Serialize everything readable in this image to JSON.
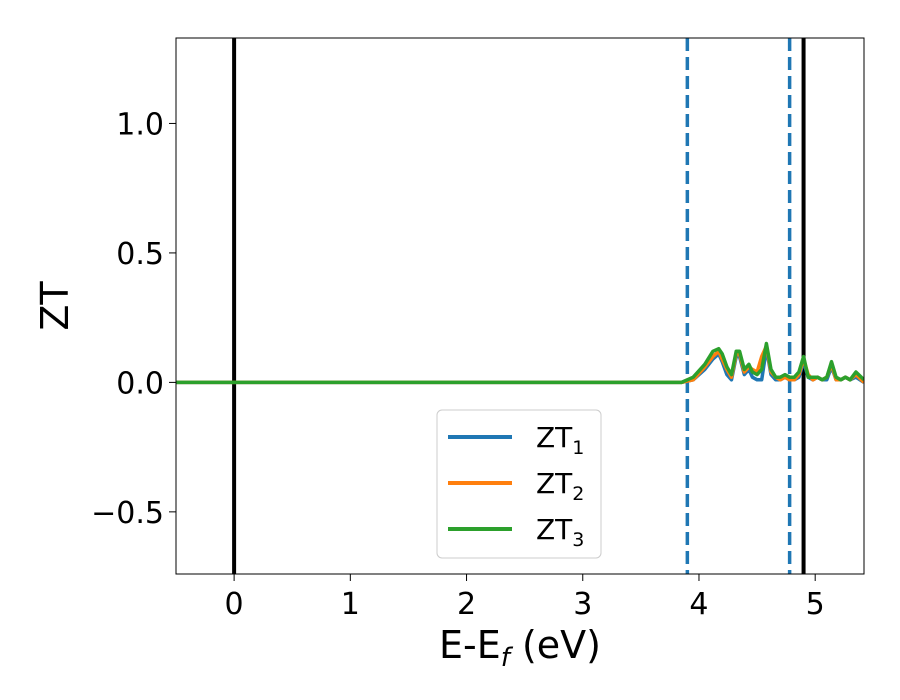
{
  "chart_data": {
    "type": "line",
    "title": "",
    "xlabel": {
      "main": "E-E",
      "sub": "f",
      "unit": " (eV)"
    },
    "ylabel": "ZT",
    "xlim": [
      -0.5,
      5.42
    ],
    "ylim": [
      -0.74,
      1.33
    ],
    "xticks": [
      0,
      1,
      2,
      3,
      4,
      5
    ],
    "xtick_labels": [
      "0",
      "1",
      "2",
      "3",
      "4",
      "5"
    ],
    "yticks": [
      -0.5,
      0.0,
      0.5,
      1.0
    ],
    "ytick_labels": [
      "−0.5",
      "0.0",
      "0.5",
      "1.0"
    ],
    "grid": false,
    "legend_position": "lower-center",
    "vlines": [
      {
        "x": 0.0,
        "style": "solid",
        "color": "#000000"
      },
      {
        "x": 4.9,
        "style": "solid",
        "color": "#000000"
      },
      {
        "x": 3.9,
        "style": "dashed",
        "color": "#1f77b4"
      },
      {
        "x": 4.78,
        "style": "dashed",
        "color": "#1f77b4"
      }
    ],
    "series": [
      {
        "name": "ZT",
        "sub": "1",
        "color": "#1f77b4",
        "x": [
          -0.5,
          3.85,
          3.95,
          4.05,
          4.12,
          4.17,
          4.2,
          4.24,
          4.28,
          4.32,
          4.35,
          4.39,
          4.43,
          4.46,
          4.5,
          4.54,
          4.58,
          4.62,
          4.66,
          4.7,
          4.74,
          4.78,
          4.82,
          4.86,
          4.9,
          4.94,
          4.98,
          5.02,
          5.06,
          5.1,
          5.14,
          5.18,
          5.22,
          5.26,
          5.3,
          5.35,
          5.42
        ],
        "values": [
          0,
          0,
          0.01,
          0.05,
          0.09,
          0.11,
          0.08,
          0.03,
          0.01,
          0.1,
          0.1,
          0.03,
          0.05,
          0.02,
          0.01,
          0.01,
          0.13,
          0.03,
          0.01,
          0.01,
          0.02,
          0.01,
          0.01,
          0.02,
          0.08,
          0.02,
          0.01,
          0.02,
          0.01,
          0.01,
          0.06,
          0.01,
          0.01,
          0.02,
          0.01,
          0.02,
          0.0
        ]
      },
      {
        "name": "ZT",
        "sub": "2",
        "color": "#ff7f0e",
        "x": [
          -0.5,
          3.85,
          3.95,
          4.05,
          4.12,
          4.17,
          4.2,
          4.24,
          4.28,
          4.32,
          4.35,
          4.39,
          4.43,
          4.46,
          4.5,
          4.54,
          4.58,
          4.62,
          4.66,
          4.7,
          4.74,
          4.78,
          4.82,
          4.86,
          4.9,
          4.94,
          4.98,
          5.02,
          5.06,
          5.1,
          5.14,
          5.18,
          5.22,
          5.26,
          5.3,
          5.35,
          5.42
        ],
        "values": [
          0,
          0,
          0.01,
          0.06,
          0.1,
          0.12,
          0.09,
          0.05,
          0.02,
          0.11,
          0.11,
          0.04,
          0.06,
          0.05,
          0.04,
          0.1,
          0.14,
          0.04,
          0.02,
          0.01,
          0.02,
          0.01,
          0.01,
          0.03,
          0.09,
          0.03,
          0.01,
          0.02,
          0.01,
          0.02,
          0.07,
          0.01,
          0.01,
          0.02,
          0.01,
          0.03,
          0.0
        ]
      },
      {
        "name": "ZT",
        "sub": "3",
        "color": "#2ca02c",
        "x": [
          -0.5,
          3.85,
          3.95,
          4.05,
          4.12,
          4.17,
          4.2,
          4.24,
          4.28,
          4.32,
          4.35,
          4.39,
          4.43,
          4.46,
          4.5,
          4.54,
          4.58,
          4.62,
          4.66,
          4.7,
          4.74,
          4.78,
          4.82,
          4.86,
          4.9,
          4.94,
          4.98,
          5.02,
          5.06,
          5.1,
          5.14,
          5.18,
          5.22,
          5.26,
          5.3,
          5.35,
          5.42
        ],
        "values": [
          0,
          0,
          0.02,
          0.07,
          0.12,
          0.13,
          0.11,
          0.06,
          0.03,
          0.12,
          0.12,
          0.05,
          0.07,
          0.04,
          0.03,
          0.05,
          0.15,
          0.05,
          0.02,
          0.02,
          0.03,
          0.02,
          0.02,
          0.04,
          0.1,
          0.02,
          0.02,
          0.02,
          0.01,
          0.02,
          0.08,
          0.02,
          0.01,
          0.02,
          0.01,
          0.04,
          0.01
        ]
      }
    ]
  }
}
